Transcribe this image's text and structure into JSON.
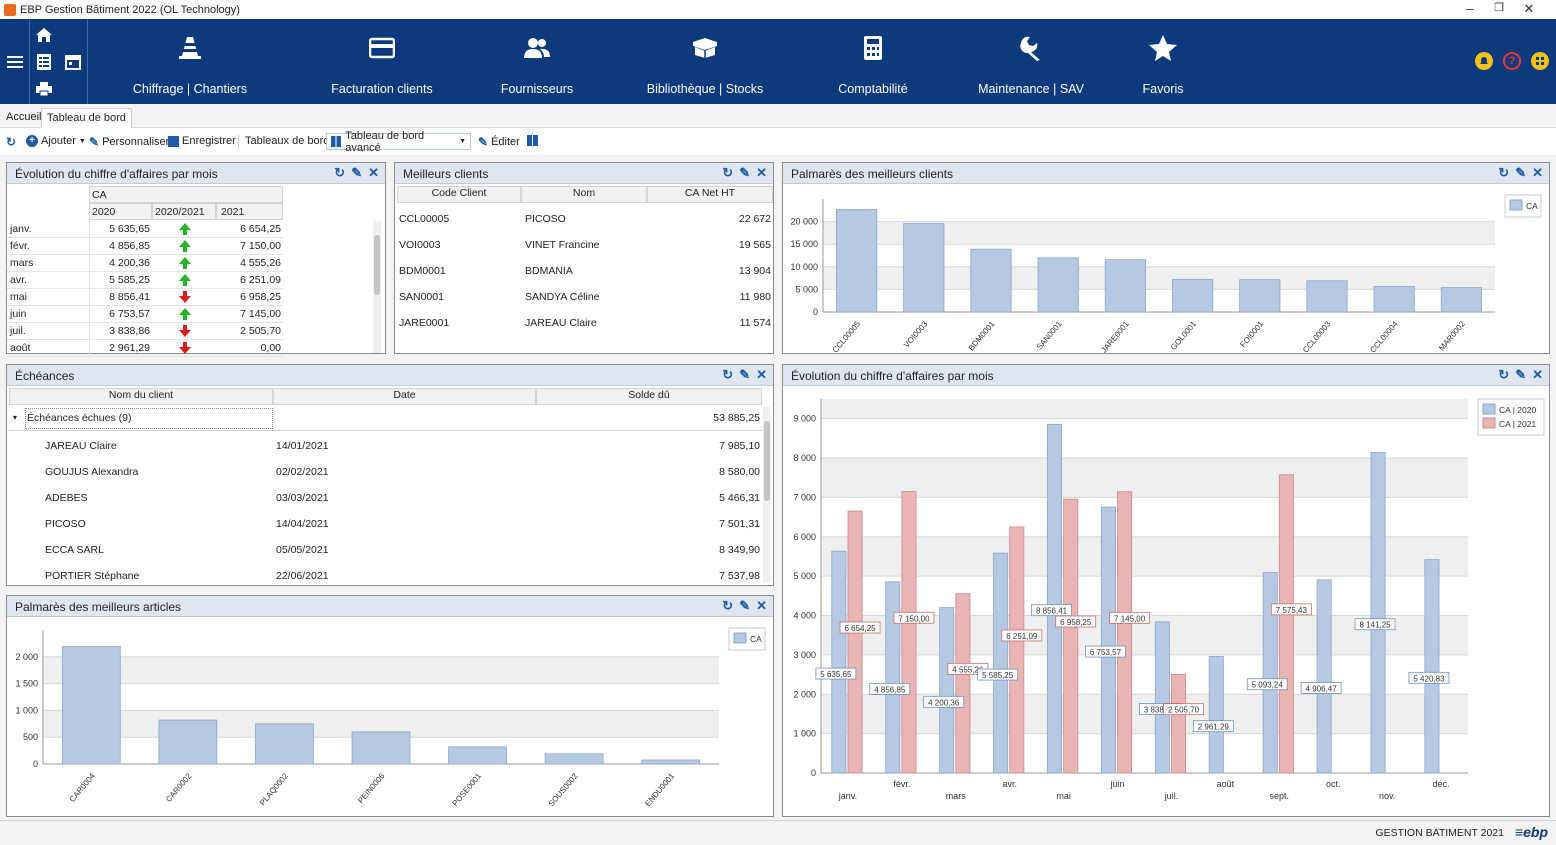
{
  "window": {
    "title": "EBP Gestion Bâtiment 2022 (OL Technology)",
    "minimize": "–",
    "maximize": "❐",
    "close": "✕"
  },
  "nav": [
    {
      "label": "Chiffrage | Chantiers",
      "icon": "cone-icon"
    },
    {
      "label": "Facturation clients",
      "icon": "card-icon"
    },
    {
      "label": "Fournisseurs",
      "icon": "people-icon"
    },
    {
      "label": "Bibliothèque | Stocks",
      "icon": "box-icon"
    },
    {
      "label": "Comptabilité",
      "icon": "calculator-icon"
    },
    {
      "label": "Maintenance | SAV",
      "icon": "wrench-icon"
    },
    {
      "label": "Favoris",
      "icon": "star-icon"
    }
  ],
  "tabs": {
    "home": "Accueil",
    "dashboard": "Tableau de bord"
  },
  "toolbar": {
    "add": "Ajouter",
    "customize": "Personnaliser",
    "save": "Enregistrer",
    "dashboards": "Tableaux de bord",
    "dashboard_select": "Tableau de bord avancé",
    "edit": "Éditer"
  },
  "panel_ca_table": {
    "title": "Évolution du chiffre d'affaires par mois",
    "group_header": "CA",
    "col_2020": "2020",
    "col_trend": "2020/2021",
    "col_2021": "2021",
    "rows": [
      {
        "month": "janv.",
        "v2020": "5 635,65",
        "trend": "up",
        "v2021": "6 654,25"
      },
      {
        "month": "févr.",
        "v2020": "4 856,85",
        "trend": "up",
        "v2021": "7 150,00"
      },
      {
        "month": "mars",
        "v2020": "4 200,36",
        "trend": "up",
        "v2021": "4 555,26"
      },
      {
        "month": "avr.",
        "v2020": "5 585,25",
        "trend": "up",
        "v2021": "6 251,09"
      },
      {
        "month": "mai",
        "v2020": "8 856,41",
        "trend": "down",
        "v2021": "6 958,25"
      },
      {
        "month": "juin",
        "v2020": "6 753,57",
        "trend": "up",
        "v2021": "7 145,00"
      },
      {
        "month": "juil.",
        "v2020": "3 838,86",
        "trend": "down",
        "v2021": "2 505,70"
      },
      {
        "month": "août",
        "v2020": "2 961,29",
        "trend": "down",
        "v2021": "0,00"
      }
    ]
  },
  "panel_best_clients": {
    "title": "Meilleurs clients",
    "col_code": "Code Client",
    "col_name": "Nom",
    "col_ca": "CA Net HT",
    "rows": [
      {
        "code": "CCL00005",
        "name": "PICOSO",
        "ca": "22 672"
      },
      {
        "code": "VOI0003",
        "name": "VINET Francine",
        "ca": "19 565"
      },
      {
        "code": "BDM0001",
        "name": "BDMANIA",
        "ca": "13 904"
      },
      {
        "code": "SAN0001",
        "name": "SANDYA Céline",
        "ca": "11 980"
      },
      {
        "code": "JARE0001",
        "name": "JAREAU Claire",
        "ca": "11 574"
      }
    ]
  },
  "panel_echeances": {
    "title": "Échéances",
    "col_client": "Nom du client",
    "col_date": "Date",
    "col_balance": "Solde dû",
    "group_label": "Échéances échues (9)",
    "group_total": "53 885,25",
    "rows": [
      {
        "client": "JAREAU Claire",
        "date": "14/01/2021",
        "balance": "7 985,10"
      },
      {
        "client": "GOUJUS Alexandra",
        "date": "02/02/2021",
        "balance": "8 580,00"
      },
      {
        "client": "ADEBES",
        "date": "03/03/2021",
        "balance": "5 466,31"
      },
      {
        "client": "PICOSO",
        "date": "14/04/2021",
        "balance": "7 501,31"
      },
      {
        "client": "ECCA SARL",
        "date": "05/05/2021",
        "balance": "8 349,90"
      },
      {
        "client": "PORTIER Stéphane",
        "date": "22/06/2021",
        "balance": "7 537,98"
      }
    ]
  },
  "panel_top_clients_chart": {
    "title": "Palmarès des meilleurs clients"
  },
  "panel_top_articles_chart": {
    "title": "Palmarès des meilleurs articles"
  },
  "panel_ca_chart": {
    "title": "Évolution du chiffre d'affaires par mois"
  },
  "status": {
    "product": "GESTION BATIMENT 2021",
    "brand": "≡ebp"
  },
  "chart_data": [
    {
      "type": "bar",
      "id": "top-clients",
      "categories": [
        "CCL00005",
        "VOI0003",
        "BDM0001",
        "SAN0001",
        "JARE0001",
        "GOL0001",
        "FOI0001",
        "CCL00003",
        "CCL00004",
        "MAR0002"
      ],
      "series": [
        {
          "name": "CA",
          "values": [
            22672,
            19565,
            13904,
            11980,
            11574,
            7200,
            7150,
            6900,
            5650,
            5400
          ]
        }
      ],
      "yticks": [
        "0",
        "5 000",
        "10 000",
        "15 000",
        "20 000"
      ],
      "ylim": [
        0,
        25000
      ],
      "legend": "top-right",
      "grid": true,
      "colors": [
        "#b6c9e2"
      ]
    },
    {
      "type": "bar",
      "id": "top-articles",
      "categories": [
        "CAR0004",
        "CAR0002",
        "PLAQ0002",
        "PEIN0006",
        "POSE0001",
        "SOUS0002",
        "ENDU0001"
      ],
      "series": [
        {
          "name": "CA",
          "values": [
            2190,
            820,
            750,
            600,
            320,
            190,
            75
          ]
        }
      ],
      "yticks": [
        "0",
        "500",
        "1 000",
        "1 500",
        "2 000"
      ],
      "ylim": [
        0,
        2500
      ],
      "legend": "top-right",
      "grid": true,
      "colors": [
        "#b6c9e2"
      ]
    },
    {
      "type": "bar",
      "id": "ca-evolution",
      "categories": [
        "janv.",
        "févr.",
        "mars",
        "avr.",
        "mai",
        "juin",
        "juil.",
        "août",
        "sept.",
        "oct.",
        "nov.",
        "déc."
      ],
      "series": [
        {
          "name": "CA | 2020",
          "values": [
            5635.65,
            4856.85,
            4200.36,
            5585.25,
            8856.41,
            6753.57,
            3838.86,
            2961.29,
            5093.24,
            4906.47,
            8141.25,
            5420.83
          ],
          "labels": [
            "5 635,65",
            "4 856,85",
            "4 200,36",
            "5 585,25",
            "8 856,41",
            "6 753,57",
            "3 838,86",
            "2 961,29",
            "5 093,24",
            "4 906,47",
            "8 141,25",
            "5 420,83"
          ]
        },
        {
          "name": "CA | 2021",
          "values": [
            6654.25,
            7150.0,
            4555.26,
            6251.09,
            6958.25,
            7145.0,
            2505.7,
            null,
            7575.43,
            null,
            null,
            null
          ],
          "labels": [
            "6 654,25",
            "7 150,00",
            "4 555,26",
            "6 251,09",
            "6 958,25",
            "7 145,00",
            "2 505,70",
            null,
            "7 575,43",
            null,
            null,
            null
          ]
        }
      ],
      "yticks": [
        "0",
        "1 000",
        "2 000",
        "3 000",
        "4 000",
        "5 000",
        "6 000",
        "7 000",
        "8 000",
        "9 000"
      ],
      "ylim": [
        0,
        9500
      ],
      "legend": "top-right",
      "grid": true,
      "colors": [
        "#b6c9e2",
        "#e8b4b4"
      ]
    }
  ]
}
